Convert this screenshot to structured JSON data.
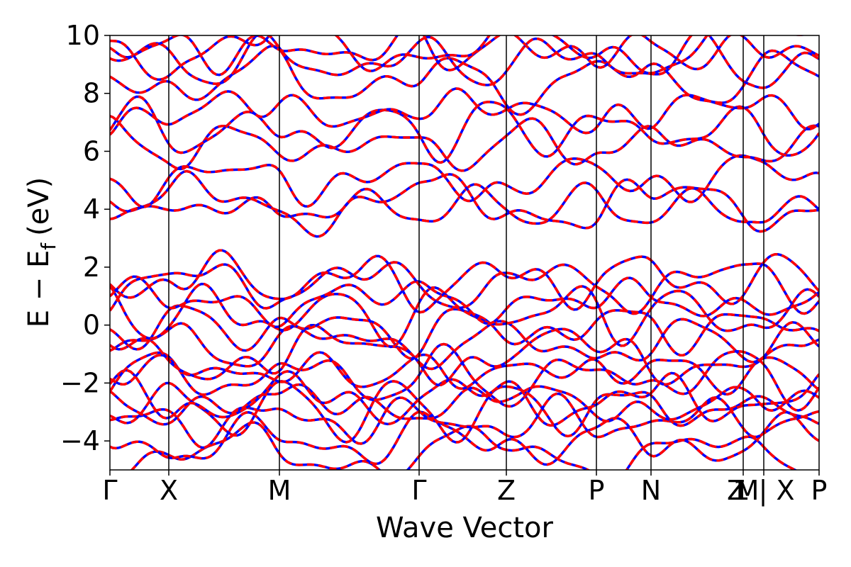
{
  "chart_data": {
    "type": "line",
    "title": "",
    "xlabel": "Wave Vector",
    "ylabel": "E − E",
    "ylabel_subscript": "f",
    "ylabel_unit": "(eV)",
    "ylim": [
      -5,
      10
    ],
    "yticks": [
      -4,
      -2,
      0,
      2,
      4,
      6,
      8,
      10
    ],
    "ytick_labels": [
      "−4",
      "−2",
      "0",
      "2",
      "4",
      "6",
      "8",
      "10"
    ],
    "xlim": [
      0,
      1
    ],
    "kpoints": [
      {
        "label": "Γ",
        "x": 0.0
      },
      {
        "label": "X",
        "x": 0.083
      },
      {
        "label": "M",
        "x": 0.239
      },
      {
        "label": "Γ",
        "x": 0.436
      },
      {
        "label": "Z",
        "x": 0.559
      },
      {
        "label": "P",
        "x": 0.686
      },
      {
        "label": "N",
        "x": 0.763
      },
      {
        "label": "Z",
        "x": 0.893
      },
      {
        "label": "M",
        "x": 0.893
      },
      {
        "label": "1 | X",
        "x": 0.922
      },
      {
        "label": "P",
        "x": 1.0
      }
    ],
    "grid": false,
    "series": [
      {
        "style": "solid",
        "color": "#0000ff"
      },
      {
        "style": "dashed",
        "color": "#ff0000"
      }
    ],
    "bands_at_gamma": [
      -4.45,
      -4.0,
      -3.3,
      -2.9,
      -2.7,
      -2.55,
      -1.8,
      -1.6,
      -1.0,
      -0.65,
      -0.1,
      0.4,
      0.85,
      1.45,
      1.55,
      4.05,
      4.2,
      5.05,
      6.2,
      6.75,
      7.4,
      8.45,
      9.1,
      9.5,
      9.65
    ]
  }
}
